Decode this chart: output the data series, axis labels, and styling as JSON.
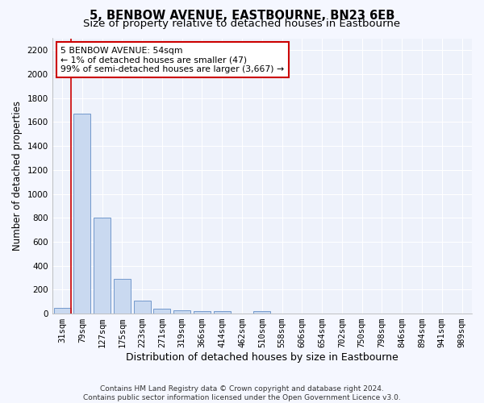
{
  "title": "5, BENBOW AVENUE, EASTBOURNE, BN23 6EB",
  "subtitle": "Size of property relative to detached houses in Eastbourne",
  "xlabel": "Distribution of detached houses by size in Eastbourne",
  "ylabel": "Number of detached properties",
  "footer_line1": "Contains HM Land Registry data © Crown copyright and database right 2024.",
  "footer_line2": "Contains public sector information licensed under the Open Government Licence v3.0.",
  "categories": [
    "31sqm",
    "79sqm",
    "127sqm",
    "175sqm",
    "223sqm",
    "271sqm",
    "319sqm",
    "366sqm",
    "414sqm",
    "462sqm",
    "510sqm",
    "558sqm",
    "606sqm",
    "654sqm",
    "702sqm",
    "750sqm",
    "798sqm",
    "846sqm",
    "894sqm",
    "941sqm",
    "989sqm"
  ],
  "values": [
    47,
    1670,
    800,
    290,
    105,
    38,
    25,
    18,
    18,
    0,
    18,
    0,
    0,
    0,
    0,
    0,
    0,
    0,
    0,
    0,
    0
  ],
  "bar_color": "#c9d9f0",
  "bar_edge_color": "#7399cc",
  "annotation_text": "5 BENBOW AVENUE: 54sqm\n← 1% of detached houses are smaller (47)\n99% of semi-detached houses are larger (3,667) →",
  "annotation_box_color": "#ffffff",
  "annotation_box_edge_color": "#cc0000",
  "red_line_color": "#cc0000",
  "ylim": [
    0,
    2300
  ],
  "yticks": [
    0,
    200,
    400,
    600,
    800,
    1000,
    1200,
    1400,
    1600,
    1800,
    2000,
    2200
  ],
  "background_color": "#eef2fb",
  "grid_color": "#ffffff",
  "fig_bg_color": "#f5f7ff",
  "title_fontsize": 10.5,
  "subtitle_fontsize": 9.5,
  "xlabel_fontsize": 9,
  "ylabel_fontsize": 8.5,
  "tick_fontsize": 7.5,
  "annotation_fontsize": 7.8,
  "footer_fontsize": 6.5
}
